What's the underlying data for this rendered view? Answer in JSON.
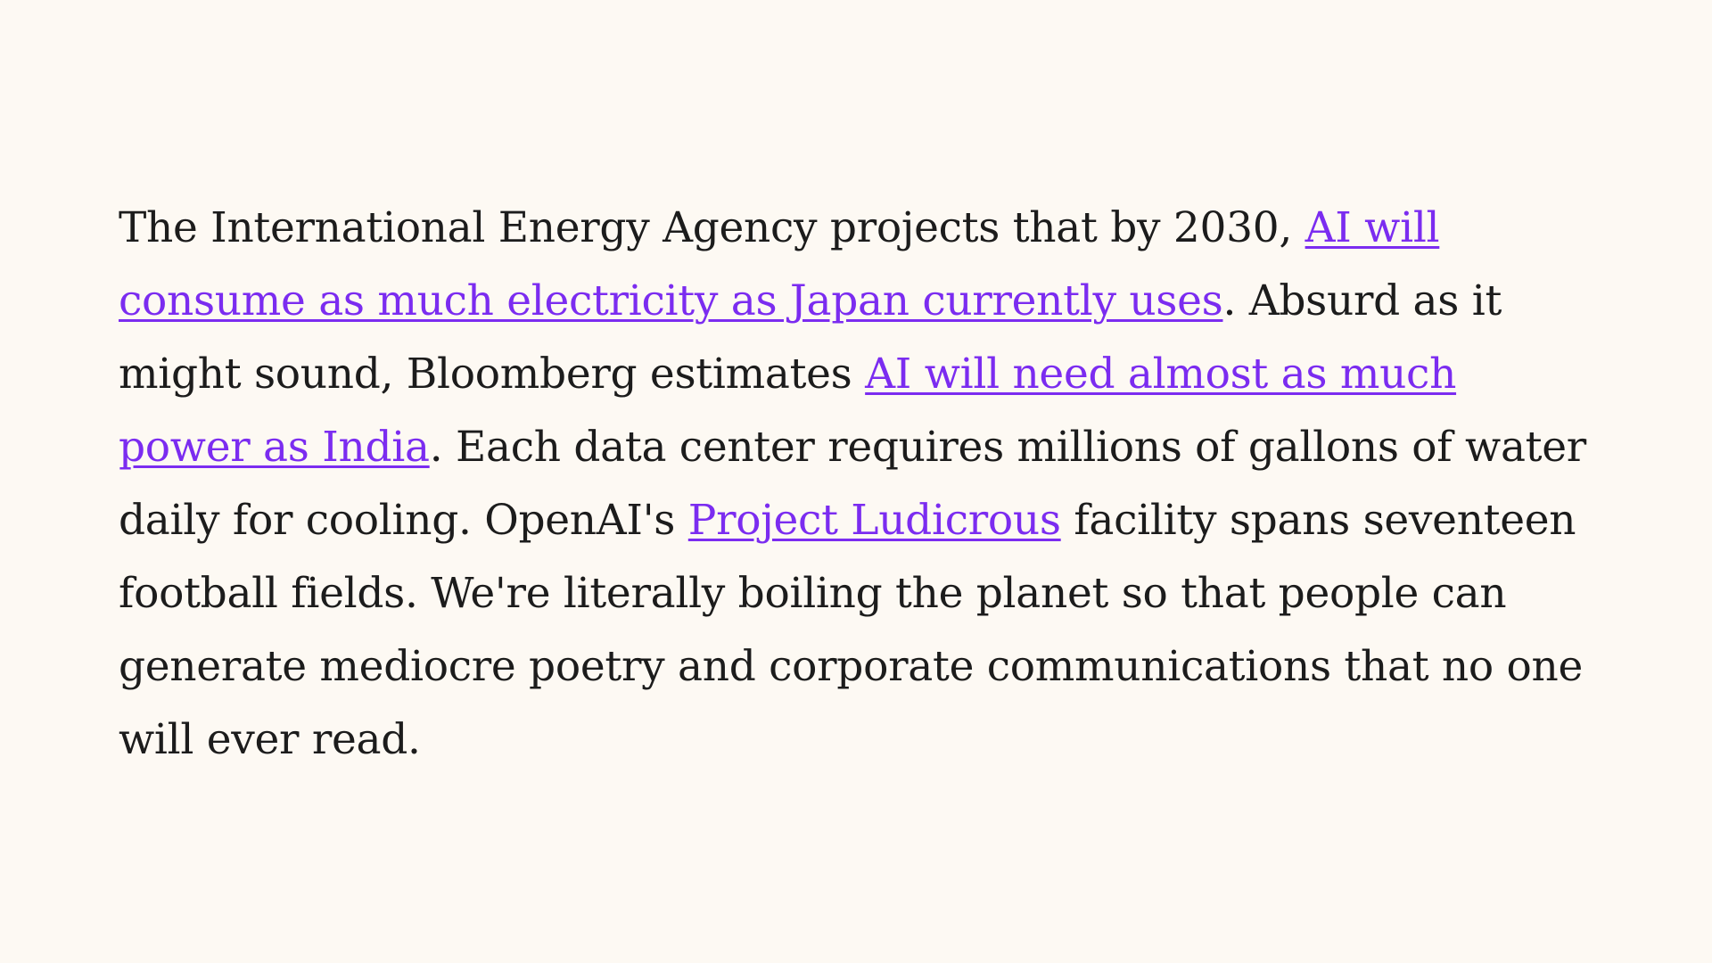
{
  "article": {
    "segments": [
      {
        "type": "text",
        "text": "The International Energy Agency projects that by 2030, "
      },
      {
        "type": "link",
        "text": "AI will consume as much electricity as Japan currently uses"
      },
      {
        "type": "text",
        "text": ". Absurd as it might sound, Bloomberg estimates "
      },
      {
        "type": "link",
        "text": "AI will need almost as much power as India"
      },
      {
        "type": "text",
        "text": ". Each data center requires millions of gallons of water daily for cooling. OpenAI's "
      },
      {
        "type": "link",
        "text": "Project Ludicrous"
      },
      {
        "type": "text",
        "text": " facility spans seventeen football fields. We're literally boiling the planet so that people can generate mediocre poetry and corporate communications that no one will ever read."
      }
    ]
  },
  "colors": {
    "background": "#fdf9f3",
    "text": "#1c1c1c",
    "link": "#7b2cf0"
  }
}
